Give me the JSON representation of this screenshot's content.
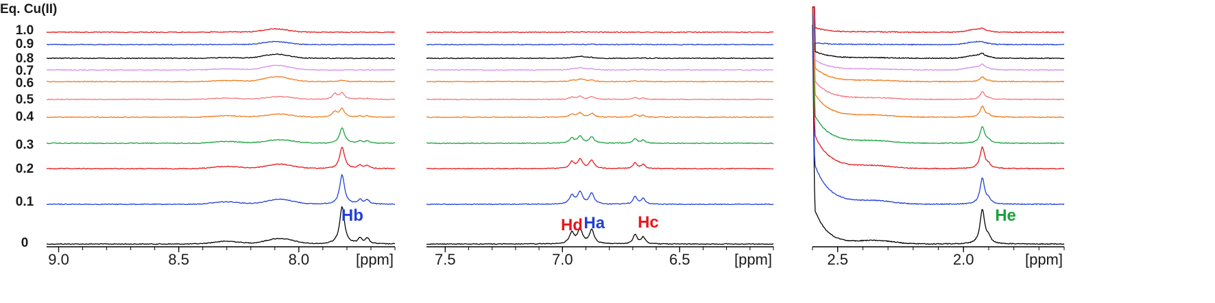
{
  "legend_title": "Eq. Cu(II)",
  "unit_label": "[ppm]",
  "chart_data": {
    "type": "line",
    "title": "",
    "xlabel": "[ppm]",
    "ylabel": "Eq. Cu(II)",
    "x_reversed": true,
    "grid": false,
    "series": [
      {
        "name": "0",
        "color": "#000000"
      },
      {
        "name": "0.1",
        "color": "#1f3fd6"
      },
      {
        "name": "0.2",
        "color": "#e8161b"
      },
      {
        "name": "0.3",
        "color": "#19a23c"
      },
      {
        "name": "0.4",
        "color": "#f07a1a"
      },
      {
        "name": "0.5",
        "color": "#f2787c"
      },
      {
        "name": "0.6",
        "color": "#f07a1a"
      },
      {
        "name": "0.7",
        "color": "#d98cf0"
      },
      {
        "name": "0.8",
        "color": "#000000"
      },
      {
        "name": "0.9",
        "color": "#1f3fd6"
      },
      {
        "name": "1.0",
        "color": "#e8161b"
      }
    ],
    "panels": [
      {
        "xlim": [
          9.05,
          7.6
        ],
        "ticks": [
          "9.0",
          "8.5",
          "8.0"
        ],
        "tick_values": [
          9.0,
          8.5,
          8.0
        ],
        "show_unit": true,
        "peaks": [
          {
            "label": "Hb",
            "ppm": 7.82,
            "color": "#1f3fd6"
          }
        ]
      },
      {
        "xlim": [
          7.58,
          6.1
        ],
        "ticks": [
          "7.5",
          "7.0",
          "6.5"
        ],
        "tick_values": [
          7.5,
          7.0,
          6.5
        ],
        "show_unit": true,
        "peaks": [
          {
            "label": "Hd",
            "ppm": 6.96,
            "color": "#e8161b"
          },
          {
            "label": "Ha",
            "ppm": 6.905,
            "color": "#1f3fd6"
          },
          {
            "label": "Hc",
            "ppm": 6.675,
            "color": "#e8161b"
          }
        ]
      },
      {
        "xlim": [
          2.6,
          1.6
        ],
        "ticks": [
          "2.5",
          "2.0"
        ],
        "tick_values": [
          2.5,
          2.0
        ],
        "show_unit": true,
        "peaks": [
          {
            "label": "He",
            "ppm": 1.92,
            "color": "#19a23c"
          }
        ]
      }
    ]
  }
}
